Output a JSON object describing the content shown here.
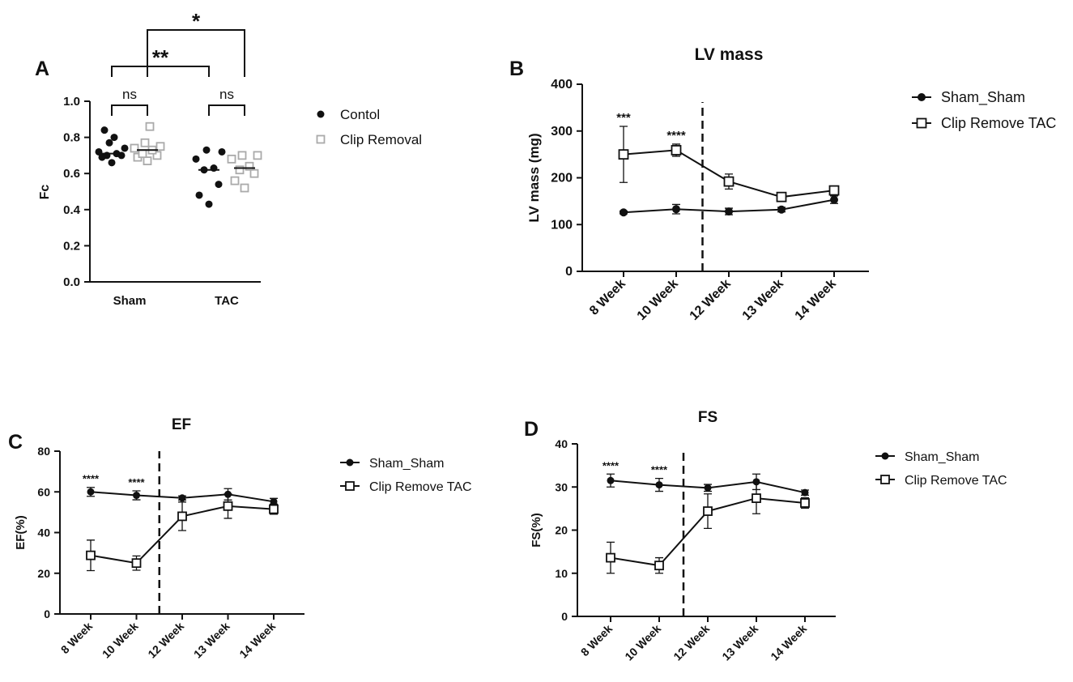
{
  "chart_data": [
    {
      "panel": "A",
      "type": "scatter",
      "title": "",
      "ylabel": "Fc",
      "xlabel": "",
      "categories": [
        "Sham",
        "TAC"
      ],
      "ylim": [
        0,
        1.0
      ],
      "yticks": [
        "0.0",
        "0.2",
        "0.4",
        "0.6",
        "0.8",
        "1.0"
      ],
      "series": [
        {
          "name": "Contol",
          "marker": "filled-circle",
          "color": "#111111",
          "points": [
            [
              0.66,
              0.69,
              0.7,
              0.7,
              0.71,
              0.72,
              0.74,
              0.77,
              0.8,
              0.84
            ],
            [
              0.43,
              0.48,
              0.54,
              0.62,
              0.63,
              0.68,
              0.72,
              0.73
            ]
          ],
          "medians": [
            0.71,
            0.62
          ]
        },
        {
          "name": "Clip Removal",
          "marker": "open-square",
          "color": "#aaaaaa",
          "points": [
            [
              0.67,
              0.69,
              0.7,
              0.71,
              0.73,
              0.74,
              0.75,
              0.77,
              0.86
            ],
            [
              0.52,
              0.56,
              0.6,
              0.62,
              0.64,
              0.68,
              0.7,
              0.7
            ]
          ],
          "medians": [
            0.73,
            0.63
          ]
        }
      ],
      "annotations": [
        {
          "pair": [
            "Sham-Contol",
            "Sham-Clip Removal"
          ],
          "label": "ns"
        },
        {
          "pair": [
            "TAC-Contol",
            "TAC-Clip Removal"
          ],
          "label": "ns"
        },
        {
          "pair": [
            "Sham-Contol",
            "TAC-Contol"
          ],
          "label": "**"
        },
        {
          "pair": [
            "Sham-Clip Removal",
            "TAC-Clip Removal"
          ],
          "label": "*"
        }
      ]
    },
    {
      "panel": "B",
      "type": "line",
      "title": "LV mass",
      "ylabel": "LV mass (mg)",
      "xlabel": "",
      "categories": [
        "8 Week",
        "10 Week",
        "12 Week",
        "13 Week",
        "14 Week"
      ],
      "ylim": [
        0,
        400
      ],
      "yticks": [
        "0",
        "100",
        "200",
        "300",
        "400"
      ],
      "series": [
        {
          "name": "Sham_Sham",
          "marker": "filled-circle",
          "values": [
            126,
            133,
            128,
            132,
            153
          ],
          "errors": [
            3,
            10,
            7,
            5,
            8
          ]
        },
        {
          "name": "Clip Remove TAC",
          "marker": "open-square",
          "values": [
            250,
            259,
            192,
            159,
            173
          ],
          "errors": [
            60,
            13,
            16,
            5,
            7
          ]
        }
      ],
      "significance": [
        "***",
        "****",
        "",
        "",
        ""
      ],
      "divider_after_index": 1
    },
    {
      "panel": "C",
      "type": "line",
      "title": "EF",
      "ylabel": "EF(%)",
      "xlabel": "",
      "categories": [
        "8 Week",
        "10 Week",
        "12 Week",
        "13 Week",
        "14 Week"
      ],
      "ylim": [
        0,
        80
      ],
      "yticks": [
        "0",
        "20",
        "40",
        "60",
        "80"
      ],
      "series": [
        {
          "name": "Sham_Sham",
          "marker": "filled-circle",
          "values": [
            60,
            58.3,
            57,
            58.8,
            55.2
          ],
          "errors": [
            2.2,
            2.2,
            1.0,
            2.8,
            1.6
          ]
        },
        {
          "name": "Clip Remove TAC",
          "marker": "open-square",
          "values": [
            28.8,
            25,
            48,
            53,
            51.5
          ],
          "errors": [
            7.5,
            3.5,
            7,
            6,
            2.5
          ]
        }
      ],
      "significance": [
        "****",
        "****",
        "",
        "",
        ""
      ],
      "divider_after_index": 1
    },
    {
      "panel": "D",
      "type": "line",
      "title": "FS",
      "ylabel": "FS(%)",
      "xlabel": "",
      "categories": [
        "8 Week",
        "10 Week",
        "12 Week",
        "13 Week",
        "14 Week"
      ],
      "ylim": [
        0,
        40
      ],
      "yticks": [
        "0",
        "10",
        "20",
        "30",
        "40"
      ],
      "series": [
        {
          "name": "Sham_Sham",
          "marker": "filled-circle",
          "values": [
            31.5,
            30.5,
            29.8,
            31.2,
            28.7
          ],
          "errors": [
            1.5,
            1.5,
            0.8,
            1.8,
            0.6
          ]
        },
        {
          "name": "Clip Remove TAC",
          "marker": "open-square",
          "values": [
            13.6,
            11.8,
            24.4,
            27.4,
            26.3
          ],
          "errors": [
            3.6,
            1.8,
            4.0,
            3.6,
            1.2
          ]
        }
      ],
      "significance": [
        "****",
        "****",
        "",
        "",
        ""
      ],
      "divider_after_index": 1
    }
  ]
}
